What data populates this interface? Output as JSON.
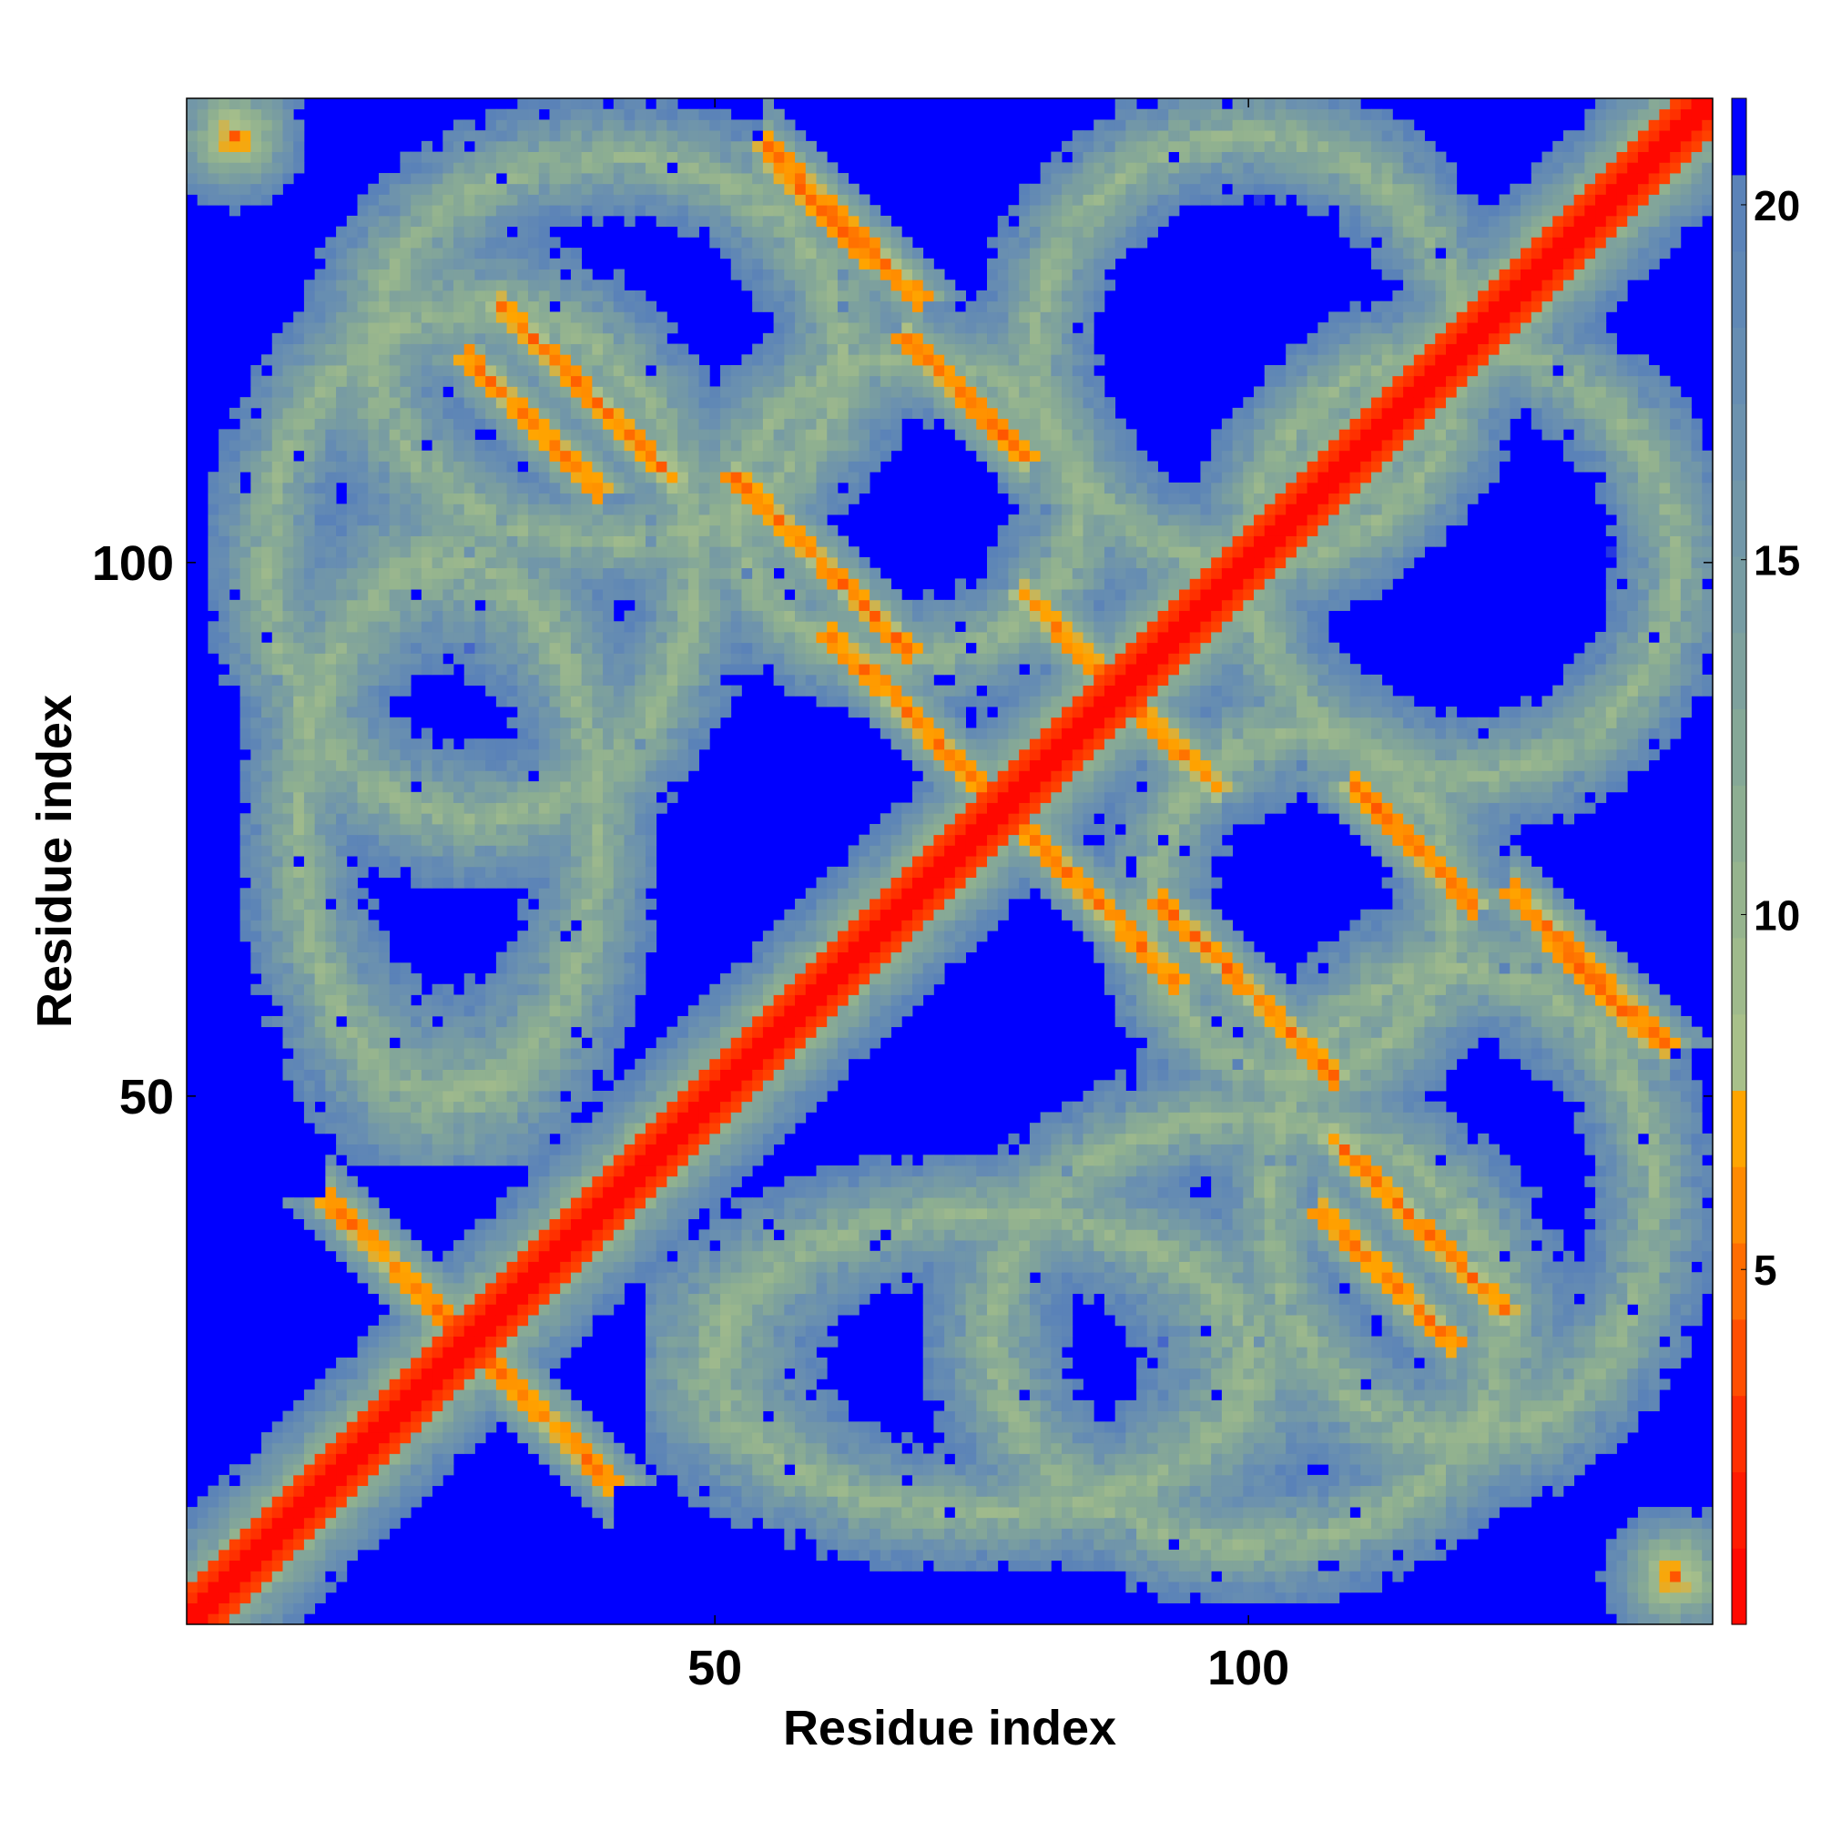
{
  "chart_data": {
    "type": "heatmap",
    "description_kind": "residue contact / distance map",
    "xlabel": "Residue index",
    "ylabel": "Residue index",
    "xlim": [
      1,
      143
    ],
    "ylim": [
      1,
      143
    ],
    "x_ticks": [
      50,
      100
    ],
    "y_ticks": [
      50,
      100
    ],
    "colorbar": {
      "range": [
        0,
        21.5
      ],
      "ticks": [
        5,
        10,
        15,
        20
      ],
      "colors": [
        "#ff0000",
        "#ff2a00",
        "#ff5500",
        "#ff8000",
        "#ffa500",
        "#a9c08a",
        "#8fb090",
        "#7a9ea0",
        "#6a90b0",
        "#5a82b8",
        "#0000ff"
      ],
      "color_stops": [
        0,
        2.5,
        4,
        5.5,
        7,
        8,
        11,
        14,
        17,
        20,
        20.01
      ]
    },
    "diagonal_value": 0,
    "background_value": 21,
    "n_residues": 143,
    "features": [
      {
        "type": "diagonal_band",
        "halfwidth": 4
      },
      {
        "type": "antiparallel_pair",
        "center_x": 32,
        "center_y": 22,
        "length": 16,
        "strength": 1
      },
      {
        "type": "antiparallel_pair",
        "center_x": 62,
        "center_y": 132,
        "length": 14,
        "strength": 1
      },
      {
        "type": "antiparallel_pair",
        "center_x": 68,
        "center_y": 86,
        "length": 14,
        "strength": 1
      },
      {
        "type": "antiparallel_pair",
        "center_x": 38,
        "center_y": 116,
        "length": 16,
        "strength": 1
      },
      {
        "type": "antiparallel_pair",
        "center_x": 74,
        "center_y": 115,
        "length": 10,
        "strength": 0.8
      },
      {
        "type": "antiparallel_pair",
        "center_x": 100,
        "center_y": 60,
        "length": 16,
        "strength": 1
      },
      {
        "type": "antiparallel_pair",
        "center_x": 116,
        "center_y": 73,
        "length": 10,
        "strength": 0.9
      },
      {
        "type": "antiparallel_pair",
        "center_x": 113,
        "center_y": 33,
        "length": 12,
        "strength": 0.9
      },
      {
        "type": "antiparallel_pair",
        "center_x": 133,
        "center_y": 60,
        "length": 8,
        "strength": 0.9
      },
      {
        "type": "antiparallel_pair",
        "center_x": 92,
        "center_y": 84,
        "length": 10,
        "strength": 0.7
      },
      {
        "type": "blob",
        "center_x": 5,
        "center_y": 140,
        "radius": 3,
        "strength": 0.8
      },
      {
        "type": "blob",
        "center_x": 140,
        "center_y": 5,
        "radius": 3,
        "strength": 0.8
      },
      {
        "type": "blob",
        "center_x": 138,
        "center_y": 138,
        "radius": 3,
        "strength": 0.8
      },
      {
        "type": "ring",
        "center_x": 28,
        "center_y": 100,
        "rx": 20,
        "ry": 24
      },
      {
        "type": "ring",
        "center_x": 100,
        "center_y": 28,
        "rx": 24,
        "ry": 20
      },
      {
        "type": "ring",
        "center_x": 68,
        "center_y": 105,
        "rx": 16,
        "ry": 14
      },
      {
        "type": "ring",
        "center_x": 105,
        "center_y": 68,
        "rx": 14,
        "ry": 16
      },
      {
        "type": "ring",
        "center_x": 75,
        "center_y": 25,
        "rx": 25,
        "ry": 14
      },
      {
        "type": "ring",
        "center_x": 25,
        "center_y": 75,
        "rx": 14,
        "ry": 25
      },
      {
        "type": "ring",
        "center_x": 120,
        "center_y": 100,
        "rx": 20,
        "ry": 20
      },
      {
        "type": "ring",
        "center_x": 100,
        "center_y": 120,
        "rx": 20,
        "ry": 20
      },
      {
        "type": "ring",
        "center_x": 120,
        "center_y": 40,
        "rx": 18,
        "ry": 22
      },
      {
        "type": "ring",
        "center_x": 40,
        "center_y": 120,
        "rx": 22,
        "ry": 18
      }
    ]
  }
}
